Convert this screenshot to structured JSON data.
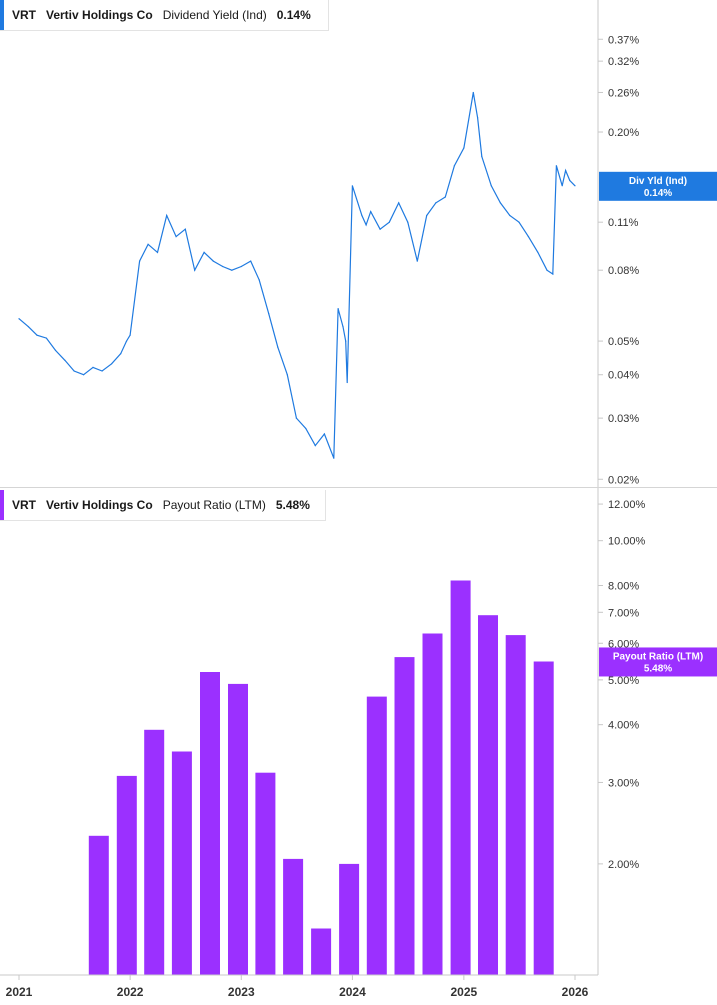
{
  "colors": {
    "yield_line": "#1f7ae0",
    "payout_bar": "#9b30ff",
    "axis": "#c8c8c8"
  },
  "legend_top": {
    "ticker": "VRT",
    "company": "Vertiv Holdings Co",
    "metric": "Dividend Yield (Ind)",
    "value": "0.14%"
  },
  "legend_bottom": {
    "ticker": "VRT",
    "company": "Vertiv Holdings Co",
    "metric": "Payout Ratio (LTM)",
    "value": "5.48%"
  },
  "x_ticks": [
    "2021",
    "2022",
    "2023",
    "2024",
    "2025",
    "2026"
  ],
  "chart_data": [
    {
      "type": "line",
      "scale": "log",
      "series": [
        {
          "name": "Dividend Yield (Ind)",
          "x": [
            "2021-01-01",
            "2021-02-01",
            "2021-03-01",
            "2021-04-01",
            "2021-05-01",
            "2021-06-01",
            "2021-07-01",
            "2021-08-01",
            "2021-09-01",
            "2021-10-01",
            "2021-11-01",
            "2021-12-01",
            "2021-12-20",
            "2022-01-01",
            "2022-02-01",
            "2022-03-01",
            "2022-04-01",
            "2022-05-01",
            "2022-06-01",
            "2022-07-01",
            "2022-08-01",
            "2022-09-01",
            "2022-10-01",
            "2022-11-01",
            "2022-12-01",
            "2023-01-01",
            "2023-02-01",
            "2023-03-01",
            "2023-04-01",
            "2023-05-01",
            "2023-06-01",
            "2023-07-01",
            "2023-08-01",
            "2023-09-01",
            "2023-10-01",
            "2023-11-01",
            "2023-11-15",
            "2023-12-01",
            "2023-12-10",
            "2023-12-15",
            "2024-01-01",
            "2024-02-01",
            "2024-02-15",
            "2024-03-01",
            "2024-04-01",
            "2024-05-01",
            "2024-06-01",
            "2024-07-01",
            "2024-08-01",
            "2024-09-01",
            "2024-10-01",
            "2024-11-01",
            "2024-12-01",
            "2025-01-01",
            "2025-02-01",
            "2025-02-15",
            "2025-03-01",
            "2025-04-01",
            "2025-05-01",
            "2025-06-01",
            "2025-07-01",
            "2025-08-01",
            "2025-09-01",
            "2025-10-01",
            "2025-10-20",
            "2025-11-01",
            "2025-11-20",
            "2025-12-01",
            "2025-12-15",
            "2026-01-01"
          ],
          "values": [
            0.058,
            0.055,
            0.052,
            0.051,
            0.047,
            0.044,
            0.041,
            0.04,
            0.042,
            0.041,
            0.043,
            0.046,
            0.05,
            0.052,
            0.085,
            0.095,
            0.09,
            0.115,
            0.1,
            0.105,
            0.08,
            0.09,
            0.085,
            0.082,
            0.08,
            0.082,
            0.085,
            0.075,
            0.06,
            0.048,
            0.04,
            0.03,
            0.028,
            0.025,
            0.027,
            0.023,
            0.062,
            0.055,
            0.05,
            0.038,
            0.14,
            0.115,
            0.108,
            0.118,
            0.105,
            0.11,
            0.125,
            0.11,
            0.085,
            0.115,
            0.125,
            0.13,
            0.16,
            0.18,
            0.26,
            0.22,
            0.17,
            0.14,
            0.125,
            0.115,
            0.11,
            0.1,
            0.09,
            0.08,
            0.078,
            0.16,
            0.14,
            0.155,
            0.145,
            0.14
          ],
          "last_label": "Div Yld (Ind)",
          "last_value_label": "0.14%"
        }
      ],
      "y_ticks": [
        "0.37%",
        "0.32%",
        "0.26%",
        "0.20%",
        "0.11%",
        "0.08%",
        "0.05%",
        "0.04%",
        "0.03%",
        "0.02%"
      ],
      "y_tick_values": [
        0.37,
        0.32,
        0.26,
        0.2,
        0.11,
        0.08,
        0.05,
        0.04,
        0.03,
        0.02
      ],
      "ylim": [
        0.019,
        0.48
      ],
      "xlim": [
        "2021-01-01",
        "2026-03-01"
      ],
      "grid": false
    },
    {
      "type": "bar",
      "scale": "log",
      "series": [
        {
          "name": "Payout Ratio (LTM)",
          "x": [
            "2021-09-30",
            "2021-12-31",
            "2022-03-31",
            "2022-06-30",
            "2022-09-30",
            "2022-12-31",
            "2023-03-31",
            "2023-06-30",
            "2023-09-30",
            "2023-12-31",
            "2024-03-31",
            "2024-06-30",
            "2024-09-30",
            "2024-12-31",
            "2025-03-31",
            "2025-06-30",
            "2025-09-30"
          ],
          "values": [
            2.3,
            3.1,
            3.9,
            3.5,
            5.2,
            4.9,
            3.15,
            2.05,
            1.45,
            2.0,
            4.6,
            5.6,
            6.3,
            8.2,
            6.9,
            6.25,
            5.48
          ],
          "last_label": "Payout Ratio (LTM)",
          "last_value_label": "5.48%"
        }
      ],
      "y_ticks": [
        "12.00%",
        "10.00%",
        "8.00%",
        "7.00%",
        "6.00%",
        "5.00%",
        "4.00%",
        "3.00%",
        "2.00%"
      ],
      "y_tick_values": [
        12,
        10,
        8,
        7,
        6,
        5,
        4,
        3,
        2
      ],
      "ylim": [
        1.15,
        13.0
      ],
      "xlim": [
        "2021-01-01",
        "2026-03-01"
      ],
      "grid": false
    }
  ]
}
